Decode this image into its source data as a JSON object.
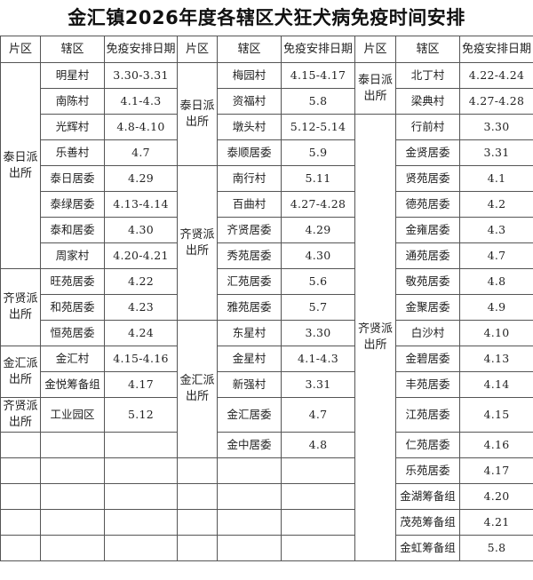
{
  "title": "金汇镇2026年度各辖区犬狂犬病免疫时间安排",
  "headers": [
    "片区",
    "辖区",
    "免疫安排日期"
  ],
  "panels": [
    {
      "groups": [
        {
          "district": "泰日派出所",
          "rows": [
            {
              "area": "明星村",
              "date": "3.30-3.31"
            },
            {
              "area": "南陈村",
              "date": "4.1-4.3"
            },
            {
              "area": "光辉村",
              "date": "4.8-4.10"
            },
            {
              "area": "乐善村",
              "date": "4.7"
            },
            {
              "area": "泰日居委",
              "date": "4.29"
            },
            {
              "area": "泰绿居委",
              "date": "4.13-4.14"
            },
            {
              "area": "泰和居委",
              "date": "4.30"
            },
            {
              "area": "周家村",
              "date": "4.20-4.21"
            }
          ]
        },
        {
          "district": "齐贤派出所",
          "rows": [
            {
              "area": "旺苑居委",
              "date": "4.22"
            },
            {
              "area": "和苑居委",
              "date": "4.23"
            },
            {
              "area": "恒苑居委",
              "date": "4.24"
            }
          ]
        },
        {
          "district": "金汇派出所",
          "rows": [
            {
              "area": "金汇村",
              "date": "4.15-4.16"
            },
            {
              "area": "金悦筹备组",
              "date": "4.17"
            }
          ]
        },
        {
          "district": "齐贤派出所",
          "rows": [
            {
              "area": "工业园区",
              "date": "5.12"
            }
          ]
        },
        {
          "district": "",
          "rows": [
            {
              "area": "",
              "date": ""
            }
          ]
        },
        {
          "district": "",
          "rows": [
            {
              "area": "",
              "date": ""
            }
          ]
        },
        {
          "district": "",
          "rows": [
            {
              "area": "",
              "date": ""
            }
          ]
        },
        {
          "district": "",
          "rows": [
            {
              "area": "",
              "date": ""
            }
          ]
        },
        {
          "district": "",
          "rows": [
            {
              "area": "",
              "date": ""
            }
          ]
        }
      ]
    },
    {
      "groups": [
        {
          "district": "泰日派出所",
          "rows": [
            {
              "area": "梅园村",
              "date": "4.15-4.17"
            },
            {
              "area": "资福村",
              "date": "5.8"
            },
            {
              "area": "墩头村",
              "date": "5.12-5.14"
            },
            {
              "area": "泰顺居委",
              "date": "5.9"
            }
          ]
        },
        {
          "district": "齐贤派出所",
          "rows": [
            {
              "area": "南行村",
              "date": "5.11"
            },
            {
              "area": "百曲村",
              "date": "4.27-4.28"
            },
            {
              "area": "齐贤居委",
              "date": "4.29"
            },
            {
              "area": "秀苑居委",
              "date": "4.30"
            },
            {
              "area": "汇苑居委",
              "date": "5.6"
            },
            {
              "area": "雅苑居委",
              "date": "5.7"
            }
          ]
        },
        {
          "district": "金汇派出所",
          "rows": [
            {
              "area": "东星村",
              "date": "3.30"
            },
            {
              "area": "金星村",
              "date": "4.1-4.3"
            },
            {
              "area": "新强村",
              "date": "3.31"
            },
            {
              "area": "金汇居委",
              "date": "4.7"
            },
            {
              "area": "金中居委",
              "date": "4.8"
            }
          ]
        },
        {
          "district": "",
          "rows": [
            {
              "area": "",
              "date": ""
            }
          ]
        },
        {
          "district": "",
          "rows": [
            {
              "area": "",
              "date": ""
            }
          ]
        },
        {
          "district": "",
          "rows": [
            {
              "area": "",
              "date": ""
            }
          ]
        },
        {
          "district": "",
          "rows": [
            {
              "area": "",
              "date": ""
            }
          ]
        }
      ]
    },
    {
      "groups": [
        {
          "district": "泰日派出所",
          "rows": [
            {
              "area": "北丁村",
              "date": "4.22-4.24"
            },
            {
              "area": "梁典村",
              "date": "4.27-4.28"
            }
          ]
        },
        {
          "district": "齐贤派出所",
          "rows": [
            {
              "area": "行前村",
              "date": "3.30"
            },
            {
              "area": "金贤居委",
              "date": "3.31"
            },
            {
              "area": "贤苑居委",
              "date": "4.1"
            },
            {
              "area": "德苑居委",
              "date": "4.2"
            },
            {
              "area": "金雍居委",
              "date": "4.3"
            },
            {
              "area": "通苑居委",
              "date": "4.7"
            },
            {
              "area": "敬苑居委",
              "date": "4.8"
            },
            {
              "area": "金聚居委",
              "date": "4.9"
            },
            {
              "area": "白沙村",
              "date": "4.10"
            },
            {
              "area": "金碧居委",
              "date": "4.13"
            },
            {
              "area": "丰苑居委",
              "date": "4.14"
            },
            {
              "area": "江苑居委",
              "date": "4.15"
            },
            {
              "area": "仁苑居委",
              "date": "4.16"
            },
            {
              "area": "乐苑居委",
              "date": "4.17"
            },
            {
              "area": "金湖筹备组",
              "date": "4.20"
            },
            {
              "area": "茂苑筹备组",
              "date": "4.21"
            },
            {
              "area": "金虹筹备组",
              "date": "5.8"
            }
          ]
        }
      ]
    }
  ]
}
